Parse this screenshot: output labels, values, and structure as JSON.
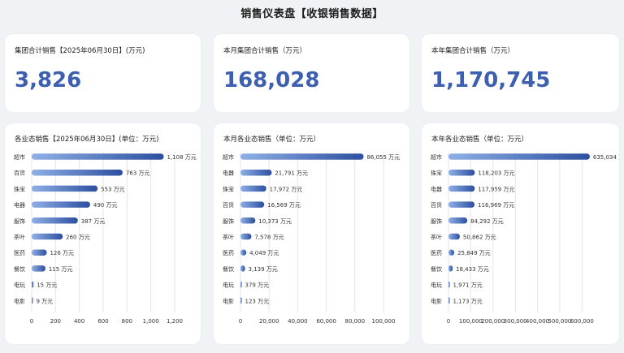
{
  "page": {
    "title": "销售仪表盘【收银销售数据】"
  },
  "kpis": [
    {
      "label": "集团合计销售【2025年06月30日】(万元)",
      "value": "3,826"
    },
    {
      "label": "本月集团合计销售（万元）",
      "value": "168,028"
    },
    {
      "label": "本年集团合计销售（万元）",
      "value": "1,170,745"
    }
  ],
  "colors": {
    "accent": "#3d5fb0",
    "bar_start": "#8fb0e6",
    "bar_end": "#2c4fa0",
    "grid": "#e4e6ea"
  },
  "chart_data": [
    {
      "type": "bar",
      "orientation": "horizontal",
      "title": "各业态销售【2025年06月30日】(单位：万元)",
      "categories": [
        "超市",
        "百货",
        "珠宝",
        "电器",
        "服饰",
        "茶叶",
        "医药",
        "餐饮",
        "电玩",
        "电影"
      ],
      "values": [
        1108,
        763,
        553,
        490,
        387,
        260,
        126,
        115,
        15,
        9
      ],
      "value_labels": [
        "1,108 万元",
        "763 万元",
        "553 万元",
        "490 万元",
        "387 万元",
        "260 万元",
        "126 万元",
        "115 万元",
        "15 万元",
        "9 万元"
      ],
      "xlim": [
        0,
        1200
      ],
      "x_ticks": [
        0,
        200,
        400,
        600,
        800,
        1000,
        1200
      ],
      "x_tick_labels": [
        "0",
        "200",
        "400",
        "600",
        "800",
        "1,000",
        "1,200"
      ],
      "grid": true
    },
    {
      "type": "bar",
      "orientation": "horizontal",
      "title": "本月各业态销售（单位：万元）",
      "categories": [
        "超市",
        "电器",
        "珠宝",
        "百货",
        "服饰",
        "茶叶",
        "医药",
        "餐饮",
        "电玩",
        "电影"
      ],
      "values": [
        86055,
        21791,
        17972,
        16569,
        10373,
        7578,
        4049,
        3139,
        379,
        123
      ],
      "value_labels": [
        "86,055 万元",
        "21,791 万元",
        "17,972 万元",
        "16,569 万元",
        "10,373 万元",
        "7,578 万元",
        "4,049 万元",
        "3,139 万元",
        "379 万元",
        "123 万元"
      ],
      "xlim": [
        0,
        100000
      ],
      "x_ticks": [
        0,
        20000,
        40000,
        60000,
        80000,
        100000
      ],
      "x_tick_labels": [
        "0",
        "20,000",
        "40,000",
        "60,000",
        "80,000",
        "100,000"
      ],
      "grid": true
    },
    {
      "type": "bar",
      "orientation": "horizontal",
      "title": "本年各业态销售（单位：万元）",
      "categories": [
        "超市",
        "珠宝",
        "电器",
        "百货",
        "服饰",
        "茶叶",
        "医药",
        "餐饮",
        "电玩",
        "电影"
      ],
      "values": [
        635034,
        118203,
        117959,
        116969,
        84292,
        50862,
        25849,
        18433,
        1971,
        1173
      ],
      "value_labels": [
        "635,034 万元",
        "118,203 万元",
        "117,959 万元",
        "116,969 万元",
        "84,292 万元",
        "50,862 万元",
        "25,849 万元",
        "18,433 万元",
        "1,971 万元",
        "1,173 万元"
      ],
      "xlim": [
        0,
        650000
      ],
      "x_ticks": [
        0,
        100000,
        200000,
        300000,
        400000,
        500000,
        600000
      ],
      "x_tick_labels": [
        "0",
        "100,000",
        "200,000",
        "300,000",
        "400,000",
        "500,000",
        "600,000"
      ],
      "grid": true
    }
  ]
}
